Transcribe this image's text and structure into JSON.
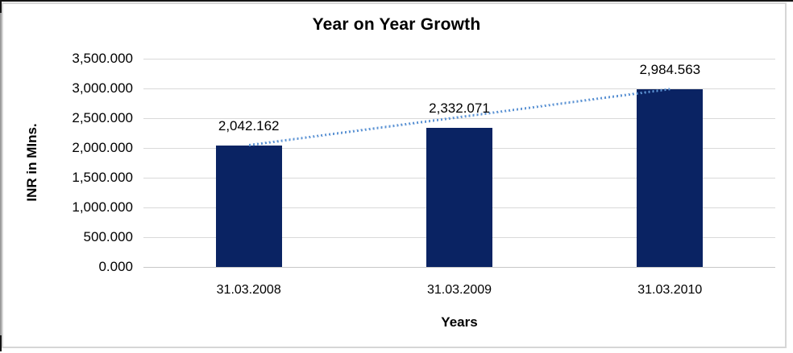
{
  "chart_data": {
    "type": "bar",
    "title": "Year on Year Growth",
    "xlabel": "Years",
    "ylabel": "INR in MIns.",
    "categories": [
      "31.03.2008",
      "31.03.2009",
      "31.03.2010"
    ],
    "values": [
      2042.162,
      2332.071,
      2984.563
    ],
    "data_labels": [
      "2,042.162",
      "2,332.071",
      "2,984.563"
    ],
    "y_ticks": [
      "3,500.000",
      "3,000.000",
      "2,500.000",
      "2,000.000",
      "1,500.000",
      "1,000.000",
      "500.000",
      "0.000"
    ],
    "y_tick_values": [
      3500,
      3000,
      2500,
      2000,
      1500,
      1000,
      500,
      0
    ],
    "ylim": [
      0,
      3500
    ],
    "grid": true,
    "legend_position": "none",
    "trendline": {
      "type": "linear",
      "style": "dotted",
      "from_value": 2042.162,
      "to_value": 2984.563
    },
    "colors": {
      "bar": "#0a2363",
      "trendline": "#5e94d4",
      "gridline": "#d9d9d9",
      "axis_baseline": "#c8c8c8",
      "text": "#000000",
      "frame_border": "#d6d6d6",
      "page_edge": "#141414"
    }
  }
}
